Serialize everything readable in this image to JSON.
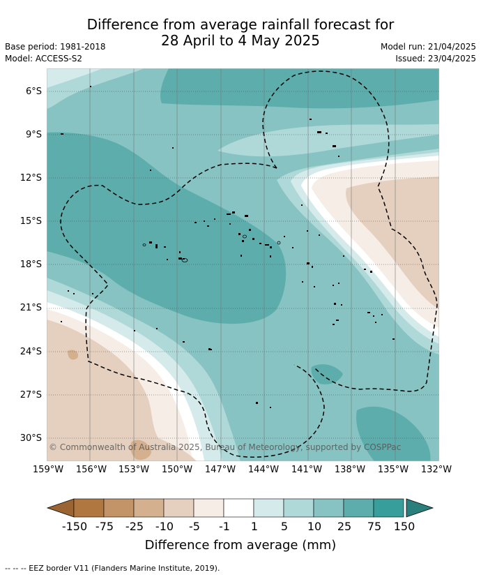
{
  "title_line1": "Difference from average rainfall forecast for",
  "title_line2": "28 April to 4 May 2025",
  "base_period": "Base period: 1981-2018",
  "model": "Model: ACCESS-S2",
  "model_run": "Model run: 21/04/2025",
  "issued": "Issued: 23/04/2025",
  "latitude_labels": [
    "6°S",
    "9°S",
    "12°S",
    "15°S",
    "18°S",
    "21°S",
    "24°S",
    "27°S",
    "30°S"
  ],
  "longitude_labels": [
    "159°W",
    "156°W",
    "153°W",
    "150°W",
    "147°W",
    "144°W",
    "141°W",
    "138°W",
    "135°W",
    "132°W"
  ],
  "copyright": "© Commonwealth of Australia 2025, Bureau of Meteorology, supported by COSPPac",
  "colorbar": {
    "labels": [
      "-150",
      "-75",
      "-25",
      "-10",
      "-5",
      "-1",
      "1",
      "5",
      "10",
      "25",
      "75",
      "150"
    ],
    "colors": [
      "#b07840",
      "#c39468",
      "#d4b08e",
      "#e5d0bf",
      "#f5ede6",
      "#ffffff",
      "#d5eaea",
      "#afd9d8",
      "#86c3c2",
      "#5dadad",
      "#379e9b"
    ],
    "under_color": "#9a6533",
    "over_color": "#2a7f7c",
    "label": "Difference from average (mm)"
  },
  "eez_note": "--  --  -- EEZ border V11 (Flanders Marine Institute, 2019)."
}
